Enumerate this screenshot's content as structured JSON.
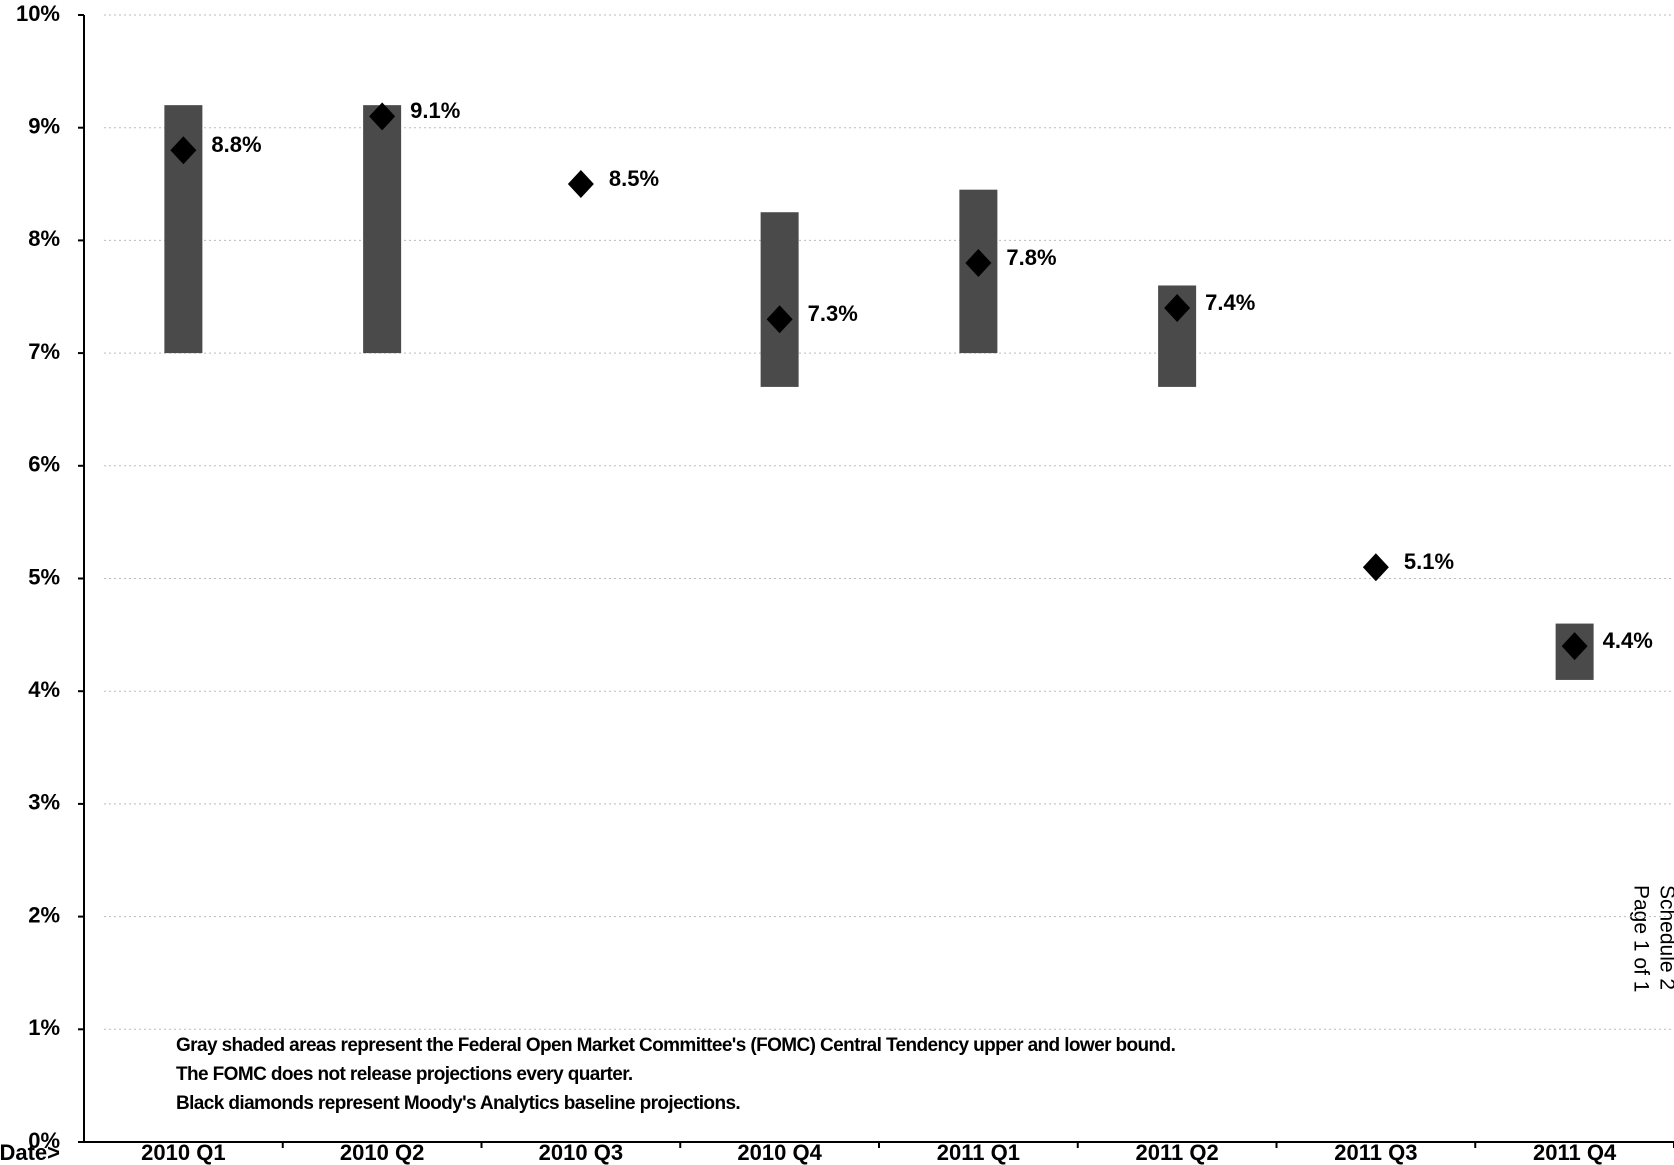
{
  "chart_data": {
    "type": "range",
    "x_label": "Release Date>",
    "categories": [
      "2010 Q1",
      "2010 Q2",
      "2010 Q3",
      "2010 Q4",
      "2011 Q1",
      "2011 Q2",
      "2011 Q3",
      "2011 Q4"
    ],
    "low": [
      7.0,
      7.0,
      null,
      6.7,
      7.0,
      6.7,
      null,
      4.1
    ],
    "high": [
      9.2,
      9.2,
      null,
      8.25,
      8.45,
      7.6,
      null,
      4.6
    ],
    "values": [
      8.8,
      9.1,
      8.5,
      7.3,
      7.8,
      7.4,
      5.1,
      4.4
    ],
    "value_labels": [
      "8.8%",
      "9.1%",
      "8.5%",
      "7.3%",
      "7.8%",
      "7.4%",
      "5.1%",
      "4.4%"
    ],
    "range_color": "#4a4a4a",
    "color": "#000000",
    "ylim": [
      0,
      10
    ],
    "yticks": [
      {
        "value": 0,
        "label": "0%"
      },
      {
        "value": 1,
        "label": "1%"
      },
      {
        "value": 2,
        "label": "2%"
      },
      {
        "value": 3,
        "label": "3%"
      },
      {
        "value": 4,
        "label": "4%"
      },
      {
        "value": 5,
        "label": "5%"
      },
      {
        "value": 6,
        "label": "6%"
      },
      {
        "value": 7,
        "label": "7%"
      },
      {
        "value": 8,
        "label": "8%"
      },
      {
        "value": 9,
        "label": "9%"
      },
      {
        "value": 10,
        "label": "10%"
      }
    ],
    "grid": true,
    "notes": [
      "Gray shaded areas represent the Federal Open Market Committee's (FOMC) Central Tendency upper and lower bound.",
      "The FOMC does not release projections every quarter.",
      "Black diamonds represent Moody's Analytics baseline projections."
    ],
    "side_text": [
      "Schedule 2",
      "Page 1 of 1"
    ]
  }
}
